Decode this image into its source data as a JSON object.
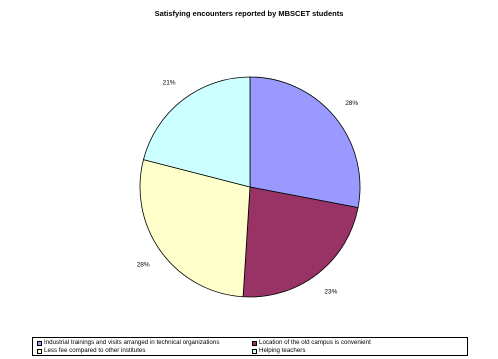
{
  "chart_data": {
    "type": "pie",
    "title": "Satisfying encounters reported by MBSCET students",
    "categories": [
      "Industrial trainings and visits arranged in technical organizations",
      "Location of the old campus is convenient",
      "Less fee compared to other institutes",
      "Helping teachers"
    ],
    "values": [
      28,
      23,
      28,
      21
    ],
    "labels": [
      "28%",
      "23%",
      "28%",
      "21%"
    ],
    "colors": [
      "#9999ff",
      "#993366",
      "#ffffcc",
      "#ccffff"
    ],
    "legend_position": "bottom"
  }
}
